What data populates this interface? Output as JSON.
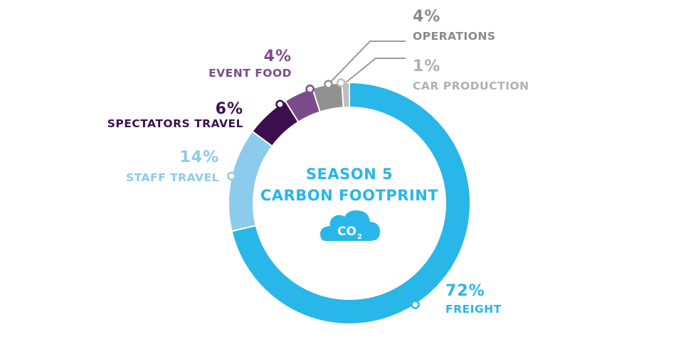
{
  "chart_data": {
    "type": "pie",
    "style": "donut",
    "title_lines": [
      "SEASON 5",
      "CARBON FOOTPRINT"
    ],
    "center_icon": "co2-cloud-icon",
    "center_icon_text": "CO",
    "center_icon_subscript": "2",
    "slices": [
      {
        "label": "FREIGHT",
        "value_label": "72%",
        "value": 72,
        "color": "#29b6e8",
        "label_color": "#29b6e8"
      },
      {
        "label": "STAFF TRAVEL",
        "value_label": "14%",
        "value": 14,
        "color": "#8ccbec",
        "label_color": "#8ccbec"
      },
      {
        "label": "SPECTATORS TRAVEL",
        "value_label": "6%",
        "value": 6,
        "color": "#3d0f4e",
        "label_color": "#3d0f4e"
      },
      {
        "label": "EVENT FOOD",
        "value_label": "4%",
        "value": 4,
        "color": "#7a4b8c",
        "label_color": "#7a4b8c"
      },
      {
        "label": "OPERATIONS",
        "value_label": "4%",
        "value": 4,
        "color": "#909090",
        "label_color": "#8a8a8a"
      },
      {
        "label": "CAR PRODUCTION",
        "value_label": "1%",
        "value": 1,
        "color": "#bdbdbd",
        "label_color": "#b0b0b0"
      }
    ]
  }
}
